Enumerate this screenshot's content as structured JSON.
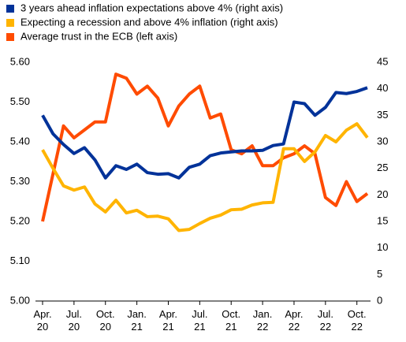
{
  "chart_data": {
    "type": "line",
    "categories": [
      "Apr. 20",
      null,
      null,
      "Jul. 20",
      null,
      null,
      "Oct. 20",
      null,
      null,
      "Jan. 21",
      null,
      null,
      "Apr. 21",
      null,
      null,
      "Jul. 21",
      null,
      null,
      "Oct. 21",
      null,
      null,
      "Jan. 22",
      null,
      null,
      "Apr. 22",
      null,
      null,
      "Jul. 22",
      null,
      null,
      "Oct. 22",
      null
    ],
    "series": [
      {
        "name": "3 years ahead inflation expectations above 4% (right axis)",
        "color": "#003299",
        "axis": "y2",
        "values": [
          35,
          31.5,
          29.5,
          27.8,
          28.9,
          26.6,
          23.2,
          25.5,
          24.8,
          25.8,
          24.2,
          23.9,
          24.0,
          23.2,
          25.2,
          25.8,
          27.4,
          27.9,
          28.1,
          28.3,
          28.3,
          28.4,
          29.3,
          29.6,
          37.5,
          37.2,
          35.0,
          36.5,
          39.3,
          39.1,
          39.5,
          40.2
        ]
      },
      {
        "name": "Expecting a recession and above 4% inflation (right axis)",
        "color": "#ffb400",
        "axis": "y2",
        "values": [
          28.5,
          25.0,
          21.7,
          20.9,
          21.5,
          18.3,
          16.8,
          19.0,
          16.6,
          17.1,
          15.9,
          16.0,
          15.5,
          13.3,
          13.5,
          14.6,
          15.6,
          16.2,
          17.2,
          17.3,
          18.1,
          18.5,
          18.6,
          28.7,
          28.7,
          26.3,
          28.1,
          31.2,
          30.0,
          32.2,
          33.4,
          30.8
        ]
      },
      {
        "name": "Average trust in the ECB (left axis)",
        "color": "#ff4b00",
        "values": [
          5.2,
          5.32,
          5.44,
          5.41,
          5.43,
          5.45,
          5.45,
          5.57,
          5.56,
          5.52,
          5.54,
          5.51,
          5.44,
          5.49,
          5.52,
          5.54,
          5.46,
          5.47,
          5.38,
          5.37,
          5.39,
          5.34,
          5.34,
          5.36,
          5.37,
          5.39,
          5.37,
          5.26,
          5.24,
          5.3,
          5.25,
          5.27
        ]
      }
    ],
    "ylim": [
      5.0,
      5.6
    ],
    "yticks": [
      {
        "value": 5.0,
        "label": "5.00"
      },
      {
        "value": 5.1,
        "label": "5.10"
      },
      {
        "value": 5.2,
        "label": "5.20"
      },
      {
        "value": 5.3,
        "label": "5.30"
      },
      {
        "value": 5.4,
        "label": "5.40"
      },
      {
        "value": 5.5,
        "label": "5.50"
      },
      {
        "value": 5.6,
        "label": "5.60"
      }
    ],
    "y2lim": [
      0,
      45
    ],
    "y2ticks": [
      0,
      5,
      10,
      15,
      20,
      25,
      30,
      35,
      40,
      45
    ],
    "legend": "top"
  }
}
